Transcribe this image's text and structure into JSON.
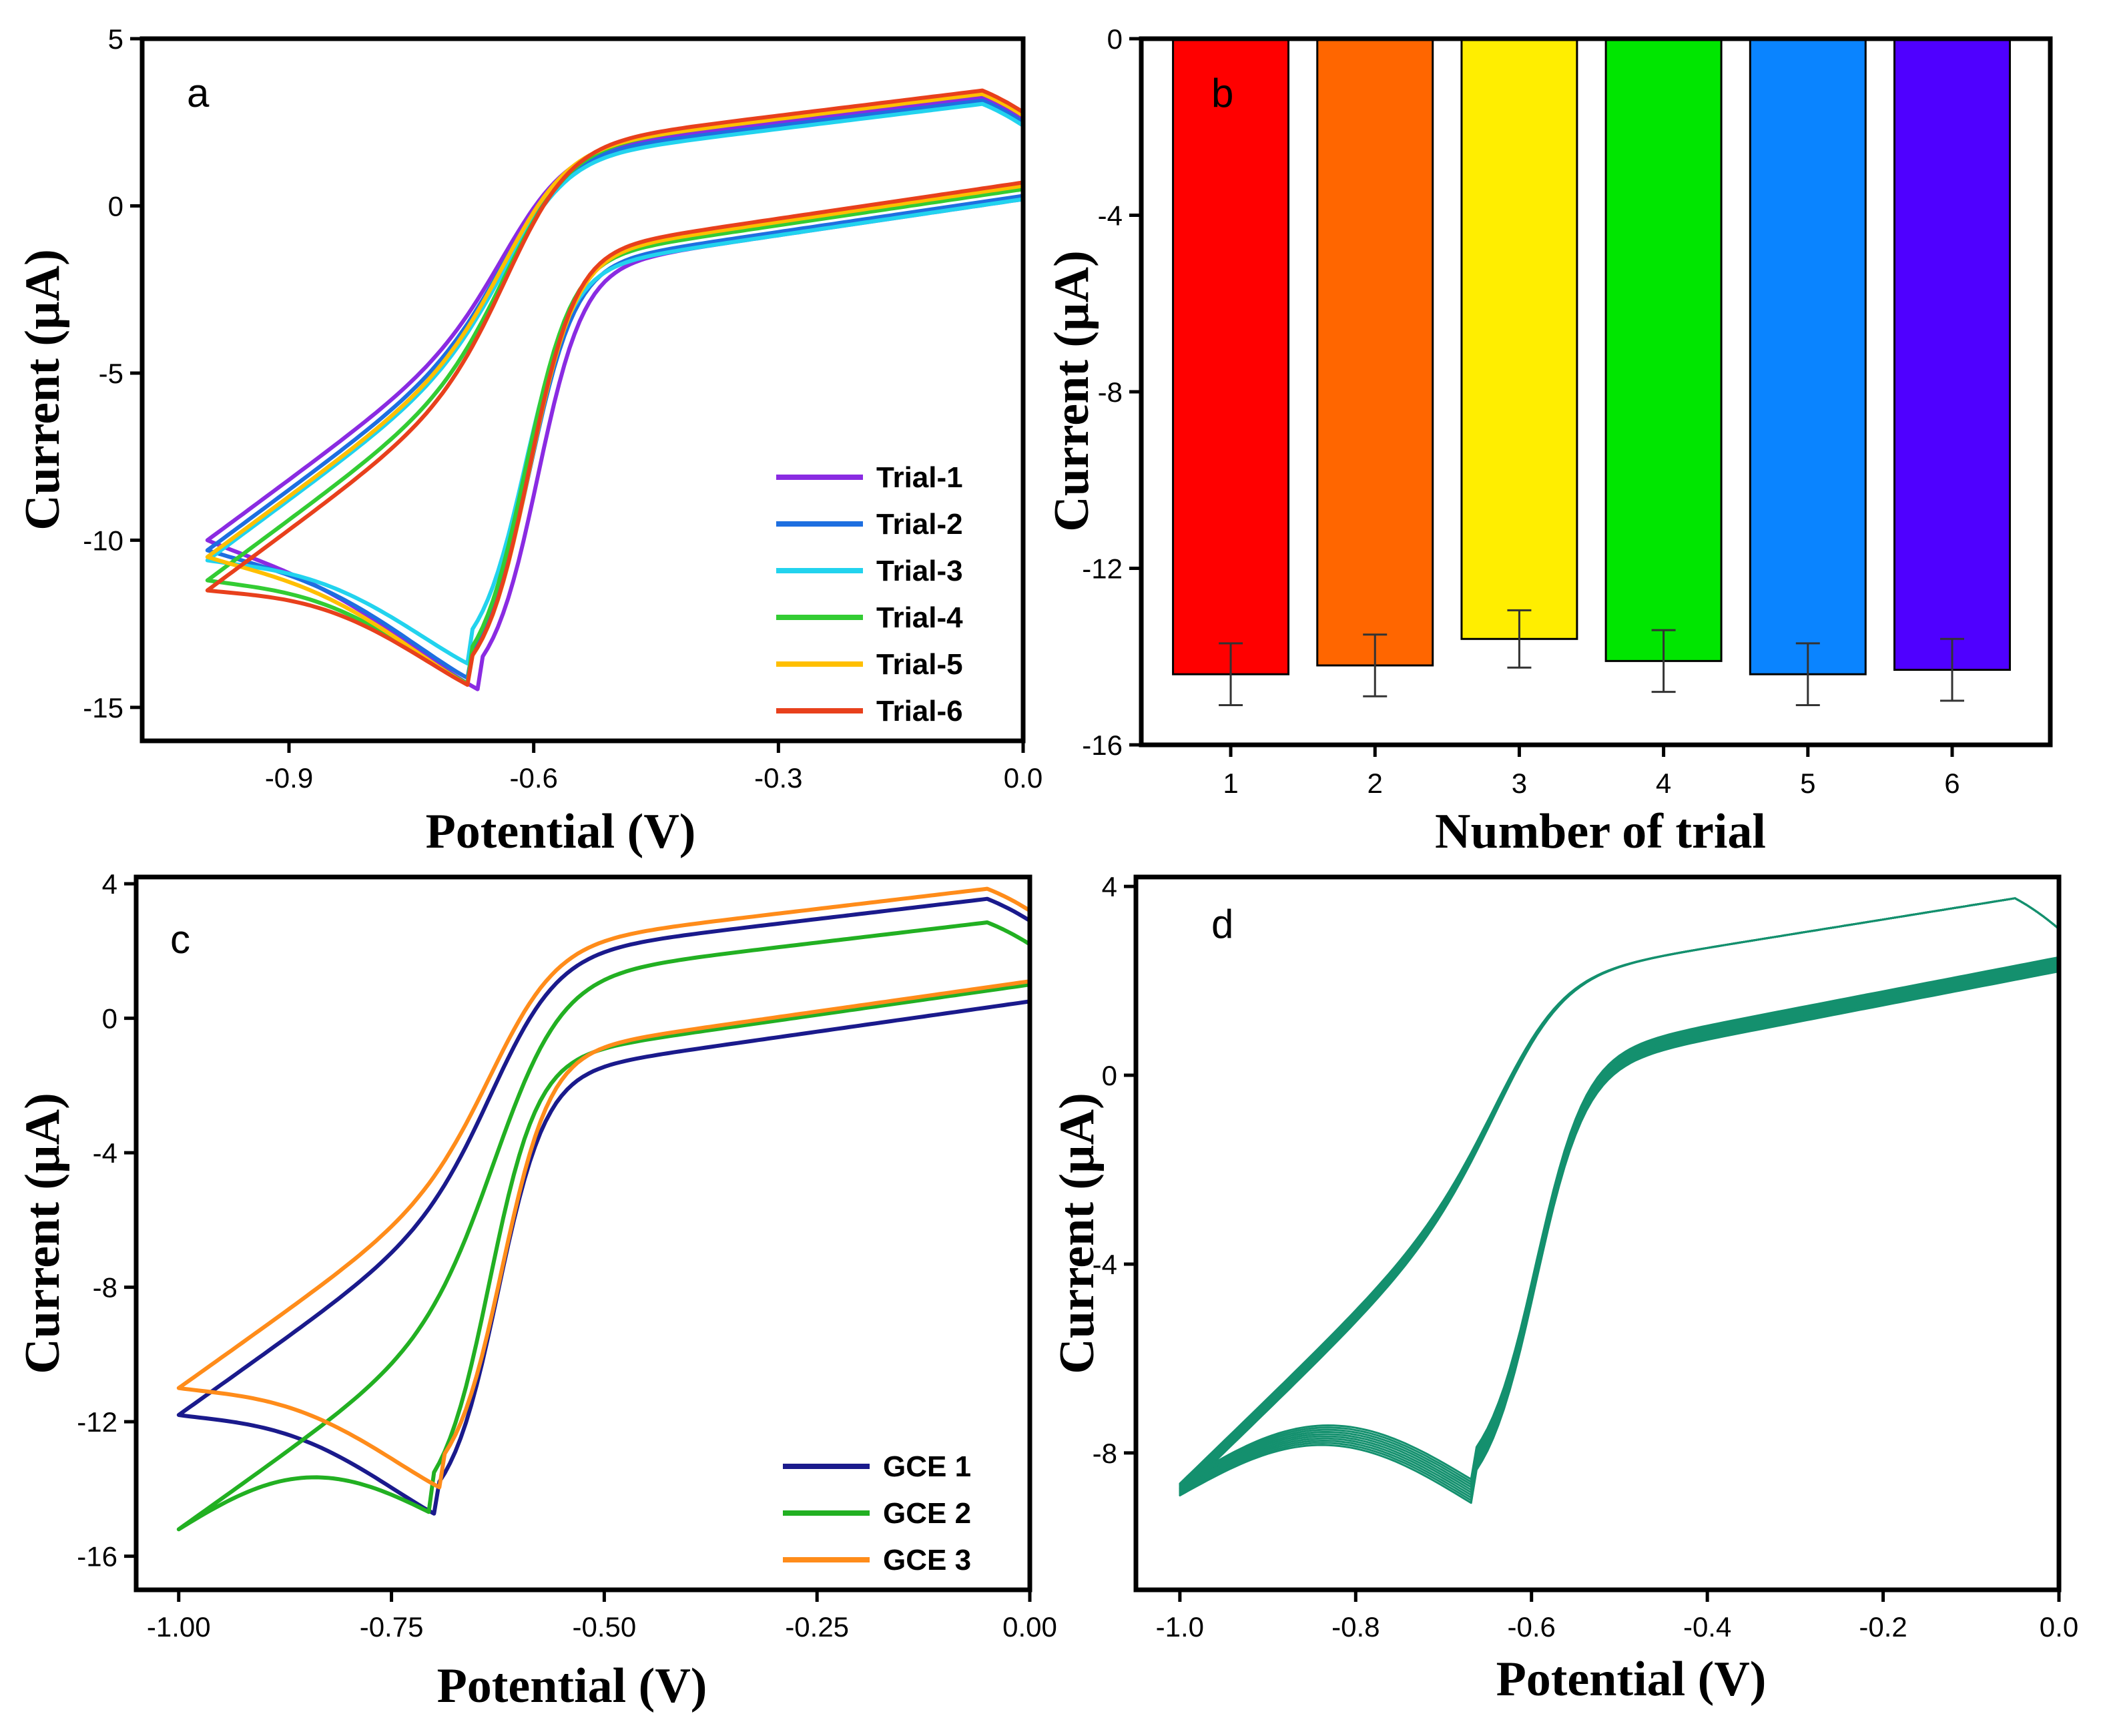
{
  "chart_data": [
    {
      "id": "a",
      "type": "line",
      "panel_label": "a",
      "xlabel": "Potential (V)",
      "ylabel": "Current (µA)",
      "xlim": [
        -1.08,
        0.0
      ],
      "ylim": [
        -16,
        5
      ],
      "xticks": [
        -0.9,
        -0.6,
        -0.3,
        0.0
      ],
      "xtick_labels": [
        "-0.9",
        "-0.6",
        "-0.3",
        "0.0"
      ],
      "yticks": [
        5,
        0,
        -5,
        -10,
        -15
      ],
      "ytick_labels": [
        "5",
        "0",
        "-5",
        "-10",
        "-15"
      ],
      "legend_position": "bottom-right",
      "series": [
        {
          "name": "Trial-1",
          "color": "#8a2be2",
          "peak_x": -0.665,
          "peak_y": -14.5,
          "start_y": -10.0,
          "end_y": 2.6,
          "turn_low": 0.2,
          "turn_high": 2.6
        },
        {
          "name": "Trial-2",
          "color": "#1e6fe0",
          "peak_x": -0.675,
          "peak_y": -14.2,
          "start_y": -10.3,
          "end_y": 2.5,
          "turn_low": 0.3,
          "turn_high": 2.5
        },
        {
          "name": "Trial-3",
          "color": "#22d3ee",
          "peak_x": -0.68,
          "peak_y": -13.7,
          "start_y": -10.6,
          "end_y": 2.4,
          "turn_low": 0.2,
          "turn_high": 2.4
        },
        {
          "name": "Trial-4",
          "color": "#33cc33",
          "peak_x": -0.68,
          "peak_y": -14.3,
          "start_y": -11.2,
          "end_y": 2.7,
          "turn_low": 0.5,
          "turn_high": 2.7
        },
        {
          "name": "Trial-5",
          "color": "#ffbf00",
          "peak_x": -0.675,
          "peak_y": -14.4,
          "start_y": -10.5,
          "end_y": 2.7,
          "turn_low": 0.6,
          "turn_high": 2.7
        },
        {
          "name": "Trial-6",
          "color": "#e8401c",
          "peak_x": -0.675,
          "peak_y": -14.4,
          "start_y": -11.5,
          "end_y": 2.8,
          "turn_low": 0.7,
          "turn_high": 2.8
        }
      ]
    },
    {
      "id": "b",
      "type": "bar",
      "panel_label": "b",
      "xlabel": "Number of trial",
      "ylabel": "Current (µA)",
      "ylim": [
        -16,
        0
      ],
      "yticks": [
        0,
        -4,
        -8,
        -12,
        -16
      ],
      "ytick_labels": [
        "0",
        "-4",
        "-8",
        "-12",
        "-16"
      ],
      "categories": [
        "1",
        "2",
        "3",
        "4",
        "5",
        "6"
      ],
      "values": [
        -14.4,
        -14.2,
        -13.6,
        -14.1,
        -14.4,
        -14.3
      ],
      "errors": [
        0.7,
        0.7,
        0.65,
        0.7,
        0.7,
        0.7
      ],
      "colors": [
        "#ff0000",
        "#ff6600",
        "#ffee00",
        "#00e600",
        "#0a84ff",
        "#4f00ff"
      ]
    },
    {
      "id": "c",
      "type": "line",
      "panel_label": "c",
      "xlabel": "Potential (V)",
      "ylabel": "Current (µA)",
      "xlim": [
        -1.05,
        0.0
      ],
      "ylim": [
        -17,
        4.2
      ],
      "xticks": [
        -1.0,
        -0.75,
        -0.5,
        -0.25,
        0.0
      ],
      "xtick_labels": [
        "-1.00",
        "-0.75",
        "-0.50",
        "-0.25",
        "0.00"
      ],
      "yticks": [
        4,
        0,
        -4,
        -8,
        -12,
        -16
      ],
      "ytick_labels": [
        "4",
        "0",
        "-4",
        "-8",
        "-12",
        "-16"
      ],
      "legend_position": "bottom-right",
      "series": [
        {
          "name": "GCE 1",
          "color": "#1a1a8c",
          "peak_x": -0.695,
          "peak_y": -14.8,
          "start_y": -11.8,
          "end_y": 2.9,
          "turn_low": 0.5,
          "turn_high": 2.9
        },
        {
          "name": "GCE 2",
          "color": "#22b022",
          "peak_x": -0.705,
          "peak_y": -14.7,
          "start_y": -15.2,
          "end_y": 2.2,
          "turn_low": 1.0,
          "turn_high": 2.2
        },
        {
          "name": "GCE 3",
          "color": "#ff8c1a",
          "peak_x": -0.69,
          "peak_y": -14.0,
          "start_y": -11.0,
          "end_y": 3.2,
          "turn_low": 1.1,
          "turn_high": 3.2
        }
      ]
    },
    {
      "id": "d",
      "type": "line",
      "panel_label": "d",
      "xlabel": "Potential (V)",
      "ylabel": "Current (µA)",
      "xlim": [
        -1.05,
        0.0
      ],
      "ylim": [
        -10.9,
        4.2
      ],
      "xticks": [
        -1.0,
        -0.8,
        -0.6,
        -0.4,
        -0.2,
        0.0
      ],
      "xtick_labels": [
        "-1.0",
        "-0.8",
        "-0.6",
        "-0.4",
        "-0.2",
        "0.0"
      ],
      "yticks": [
        4,
        0,
        -4,
        -8
      ],
      "ytick_labels": [
        "4",
        "0",
        "-4",
        "-8"
      ],
      "color": "#14906e",
      "cycle_count": 10,
      "peak_x": -0.665,
      "peak_y": -9.1,
      "start_y": -8.9,
      "end_y": 3.1
    }
  ]
}
